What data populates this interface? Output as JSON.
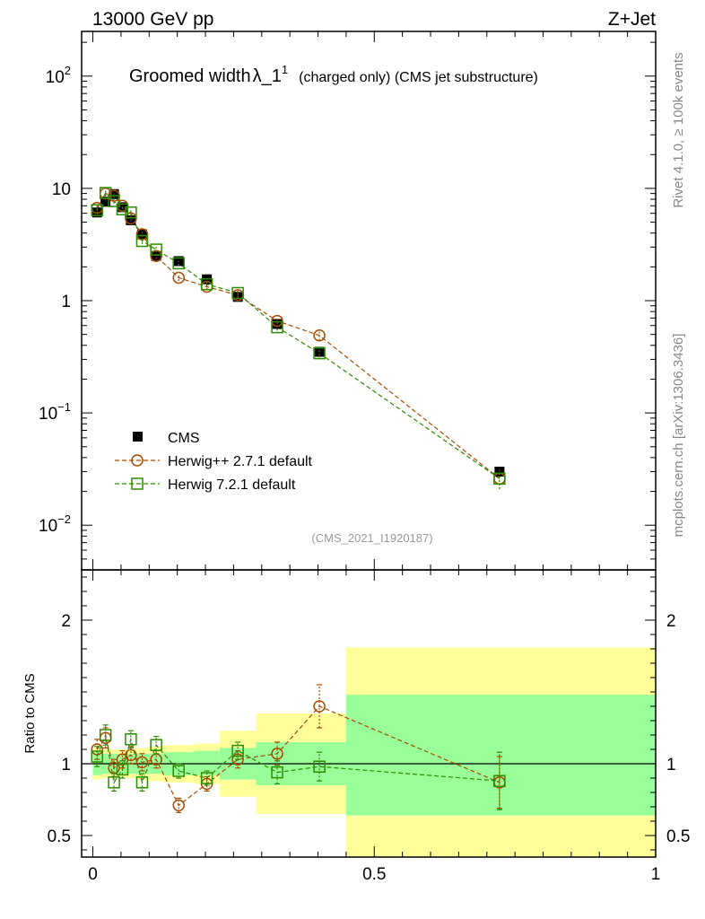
{
  "header": {
    "left": "13000 GeV pp",
    "right": "Z+Jet"
  },
  "side_labels": {
    "rivet": "Rivet 4.1.0, ≥ 100k events",
    "mcplots": "mcplots.cern.ch [arXiv:1306.3436]"
  },
  "watermark": "(CMS_2021_I1920187)",
  "title": {
    "main": "Groomed width",
    "symbol": "λ_1",
    "superscript": "1",
    "suffix": "(charged only) (CMS jet substructure)"
  },
  "legend": [
    {
      "label": "CMS"
    },
    {
      "label": "Herwig++ 2.7.1 default"
    },
    {
      "label": "Herwig 7.2.1 default"
    }
  ],
  "colors": {
    "data": "#000000",
    "herwigpp": "#a64b00",
    "herwig7": "#2e8b00",
    "band_yellow": "#ffff99",
    "band_green": "#99ff99"
  },
  "chart_data": [
    {
      "type": "scatter",
      "panel": "main",
      "ylog": true,
      "ylim": [
        0.004,
        250
      ],
      "xlim": [
        -0.02,
        1.0
      ],
      "yticks": [
        {
          "value": 0.01,
          "base": "10",
          "exp": "−2"
        },
        {
          "value": 0.1,
          "base": "10",
          "exp": "−1"
        },
        {
          "value": 1,
          "label": "1"
        },
        {
          "value": 10,
          "label": "10"
        },
        {
          "value": 100,
          "base": "10",
          "exp": "2"
        }
      ],
      "series": [
        {
          "name": "CMS",
          "marker": "filled-square",
          "x": [
            0.0075,
            0.0225,
            0.0375,
            0.0525,
            0.0675,
            0.0875,
            0.1125,
            0.1525,
            0.2025,
            0.2575,
            0.3275,
            0.4025,
            0.7225
          ],
          "y": [
            6.1,
            7.6,
            8.9,
            6.8,
            5.2,
            3.9,
            2.5,
            2.25,
            1.55,
            1.08,
            0.62,
            0.35,
            0.03
          ]
        },
        {
          "name": "Herwig++ 2.7.1 default",
          "marker": "open-circle",
          "line": "dashed",
          "x": [
            0.0075,
            0.0225,
            0.0375,
            0.0525,
            0.0675,
            0.0875,
            0.1125,
            0.1525,
            0.2025,
            0.2575,
            0.3275,
            0.4025,
            0.7225
          ],
          "y": [
            6.7,
            9.0,
            8.6,
            7.0,
            5.4,
            3.9,
            2.5,
            1.6,
            1.33,
            1.12,
            0.66,
            0.49,
            0.026
          ],
          "yerr": [
            0.4,
            0.5,
            0.4,
            0.4,
            0.3,
            0.2,
            0.15,
            0.1,
            0.08,
            0.06,
            0.04,
            0.05,
            0.005
          ]
        },
        {
          "name": "Herwig 7.2.1 default",
          "marker": "open-square",
          "line": "dashed",
          "x": [
            0.0075,
            0.0225,
            0.0375,
            0.0525,
            0.0675,
            0.0875,
            0.1125,
            0.1525,
            0.2025,
            0.2575,
            0.3275,
            0.4025,
            0.7225
          ],
          "y": [
            6.4,
            9.1,
            7.7,
            6.5,
            6.1,
            3.4,
            2.85,
            2.15,
            1.4,
            1.17,
            0.58,
            0.34,
            0.026
          ],
          "yerr": [
            0.4,
            0.6,
            0.4,
            0.4,
            0.4,
            0.2,
            0.15,
            0.1,
            0.08,
            0.06,
            0.04,
            0.04,
            0.005
          ]
        }
      ]
    },
    {
      "type": "scatter",
      "panel": "ratio",
      "ylabel": "Ratio to CMS",
      "ylim": [
        0.35,
        2.35
      ],
      "xlim": [
        -0.02,
        1.0
      ],
      "yticks": [
        0.5,
        1,
        2
      ],
      "ytick_labels": [
        "0.5",
        "1",
        "2"
      ],
      "xticks": [
        0,
        0.5,
        1
      ],
      "xtick_labels": [
        "0",
        "0.5",
        "1"
      ],
      "bands": [
        {
          "x0": 0.0,
          "x1": 0.015,
          "y_inner": [
            0.92,
            1.08
          ],
          "y_outer": [
            0.89,
            1.11
          ]
        },
        {
          "x0": 0.015,
          "x1": 0.03,
          "y_inner": [
            0.93,
            1.07
          ],
          "y_outer": [
            0.9,
            1.1
          ]
        },
        {
          "x0": 0.03,
          "x1": 0.045,
          "y_inner": [
            0.93,
            1.07
          ],
          "y_outer": [
            0.9,
            1.1
          ]
        },
        {
          "x0": 0.045,
          "x1": 0.06,
          "y_inner": [
            0.93,
            1.07
          ],
          "y_outer": [
            0.9,
            1.1
          ]
        },
        {
          "x0": 0.06,
          "x1": 0.075,
          "y_inner": [
            0.93,
            1.07
          ],
          "y_outer": [
            0.9,
            1.1
          ]
        },
        {
          "x0": 0.075,
          "x1": 0.1,
          "y_inner": [
            0.93,
            1.07
          ],
          "y_outer": [
            0.89,
            1.11
          ]
        },
        {
          "x0": 0.1,
          "x1": 0.125,
          "y_inner": [
            0.93,
            1.07
          ],
          "y_outer": [
            0.88,
            1.12
          ]
        },
        {
          "x0": 0.125,
          "x1": 0.18,
          "y_inner": [
            0.92,
            1.08
          ],
          "y_outer": [
            0.87,
            1.13
          ]
        },
        {
          "x0": 0.18,
          "x1": 0.225,
          "y_inner": [
            0.92,
            1.09
          ],
          "y_outer": [
            0.86,
            1.14
          ]
        },
        {
          "x0": 0.225,
          "x1": 0.29,
          "y_inner": [
            0.89,
            1.11
          ],
          "y_outer": [
            0.77,
            1.23
          ]
        },
        {
          "x0": 0.29,
          "x1": 0.45,
          "y_inner": [
            0.85,
            1.15
          ],
          "y_outer": [
            0.65,
            1.35
          ]
        },
        {
          "x0": 0.45,
          "x1": 1.0,
          "y_inner": [
            0.64,
            1.48
          ],
          "y_outer": [
            0.33,
            1.81
          ]
        }
      ],
      "series": [
        {
          "name": "Herwig++ 2.7.1 default",
          "x": [
            0.0075,
            0.0225,
            0.0375,
            0.0525,
            0.0675,
            0.0875,
            0.1125,
            0.1525,
            0.2025,
            0.2575,
            0.3275,
            0.4025,
            0.7225
          ],
          "y": [
            1.1,
            1.18,
            0.97,
            1.03,
            1.06,
            1.01,
            1.03,
            0.71,
            0.86,
            1.03,
            1.07,
            1.4,
            0.87
          ],
          "yerr": [
            0.07,
            0.07,
            0.06,
            0.06,
            0.06,
            0.06,
            0.06,
            0.05,
            0.05,
            0.06,
            0.08,
            0.15,
            0.18
          ]
        },
        {
          "name": "Herwig 7.2.1 default",
          "x": [
            0.0075,
            0.0225,
            0.0375,
            0.0525,
            0.0675,
            0.0875,
            0.1125,
            0.1525,
            0.2025,
            0.2575,
            0.3275,
            0.4025,
            0.7225
          ],
          "y": [
            1.05,
            1.2,
            0.87,
            0.96,
            1.17,
            0.87,
            1.13,
            0.95,
            0.9,
            1.09,
            0.94,
            0.98,
            0.88
          ],
          "yerr": [
            0.07,
            0.07,
            0.06,
            0.06,
            0.06,
            0.06,
            0.06,
            0.05,
            0.05,
            0.06,
            0.08,
            0.1,
            0.2
          ]
        }
      ]
    }
  ]
}
